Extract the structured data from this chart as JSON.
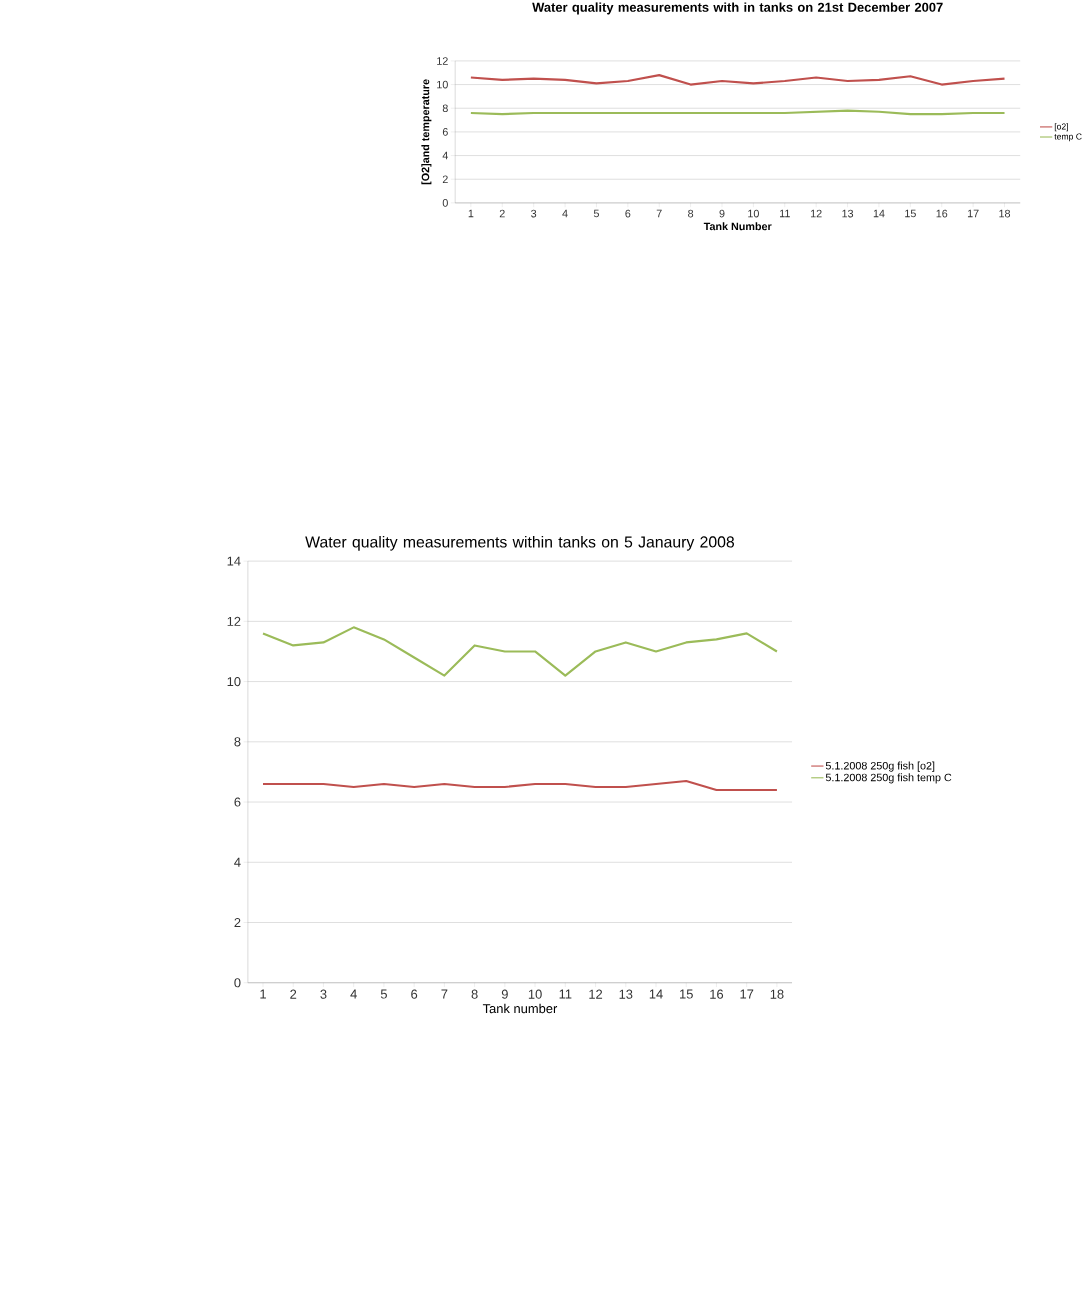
{
  "chart_data": [
    {
      "type": "line",
      "title": "Water quality measurements with in tanks on 21st December 2007",
      "xlabel": "Tank Number",
      "ylabel": "[O2]and temperature",
      "categories": [
        "1",
        "2",
        "3",
        "4",
        "5",
        "6",
        "7",
        "8",
        "9",
        "10",
        "11",
        "12",
        "13",
        "14",
        "15",
        "16",
        "17",
        "18"
      ],
      "series": [
        {
          "name": "[o2]",
          "color": "#c0504d",
          "values": [
            10.6,
            10.4,
            10.5,
            10.4,
            10.1,
            10.3,
            10.8,
            10.0,
            10.3,
            10.1,
            10.3,
            10.6,
            10.3,
            10.4,
            10.7,
            10.0,
            10.3,
            10.5
          ]
        },
        {
          "name": "temp C",
          "color": "#9bbb59",
          "values": [
            7.6,
            7.5,
            7.6,
            7.6,
            7.6,
            7.6,
            7.6,
            7.6,
            7.6,
            7.6,
            7.6,
            7.7,
            7.8,
            7.7,
            7.5,
            7.5,
            7.6,
            7.6
          ]
        }
      ],
      "ylim": [
        0,
        12
      ],
      "yticks": [
        0,
        2,
        4,
        6,
        8,
        10,
        12
      ],
      "grid": "y",
      "legend": "right"
    },
    {
      "type": "line",
      "title": "Water quality measurements within tanks on  5 Janaury 2008",
      "xlabel": "Tank number",
      "categories": [
        "1",
        "2",
        "3",
        "4",
        "5",
        "6",
        "7",
        "8",
        "9",
        "10",
        "11",
        "12",
        "13",
        "14",
        "15",
        "16",
        "17",
        "18"
      ],
      "series": [
        {
          "name": "5.1.2008 250g fish [o2]",
          "color": "#c0504d",
          "values": [
            6.6,
            6.6,
            6.6,
            6.5,
            6.6,
            6.5,
            6.6,
            6.5,
            6.5,
            6.6,
            6.6,
            6.5,
            6.5,
            6.6,
            6.7,
            6.4,
            6.4,
            6.4
          ]
        },
        {
          "name": "5.1.2008 250g fish temp C",
          "color": "#9bbb59",
          "values": [
            11.6,
            11.2,
            11.3,
            11.8,
            11.4,
            10.8,
            10.2,
            11.2,
            11.0,
            11.0,
            10.2,
            11.0,
            11.3,
            11.0,
            11.3,
            11.4,
            11.6,
            11.0
          ]
        }
      ],
      "ylim": [
        0,
        14
      ],
      "yticks": [
        0,
        2,
        4,
        6,
        8,
        10,
        12,
        14
      ],
      "grid": "y",
      "legend": "right"
    }
  ]
}
